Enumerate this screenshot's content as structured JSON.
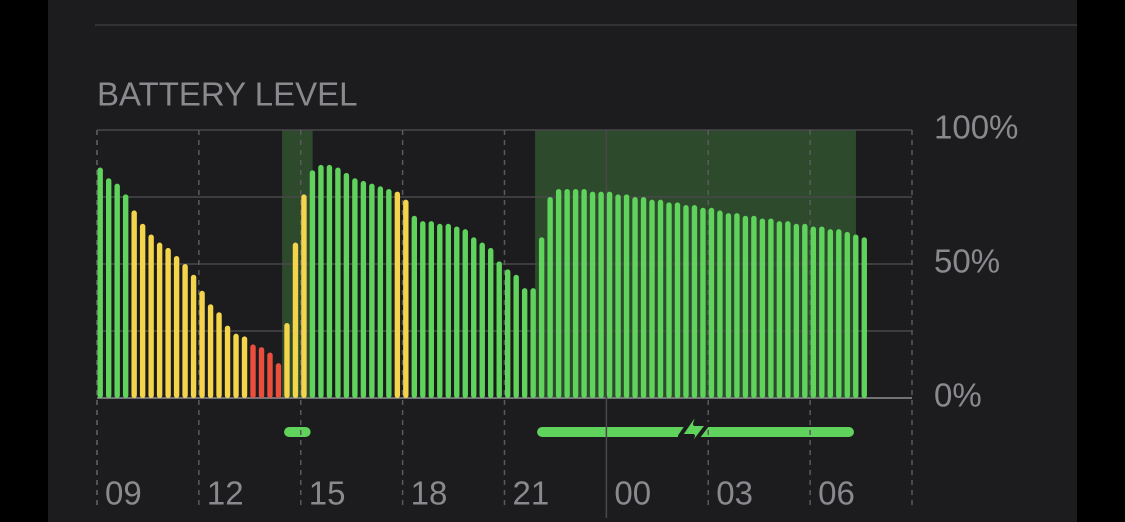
{
  "chart_data": {
    "type": "bar",
    "title": "BATTERY LEVEL",
    "xlim": [
      0,
      24
    ],
    "xticks": [
      {
        "value": 0,
        "label": "09"
      },
      {
        "value": 3,
        "label": "12"
      },
      {
        "value": 6,
        "label": "15"
      },
      {
        "value": 9,
        "label": "18"
      },
      {
        "value": 12,
        "label": "21"
      },
      {
        "value": 15,
        "label": "00"
      },
      {
        "value": 18,
        "label": "03"
      },
      {
        "value": 21,
        "label": "06"
      }
    ],
    "day_boundary": 15,
    "ylim": [
      0,
      100
    ],
    "yticks": [
      {
        "value": 0,
        "label": "0%"
      },
      {
        "value": 25,
        "label": null
      },
      {
        "value": 50,
        "label": "50%"
      },
      {
        "value": 75,
        "label": null
      },
      {
        "value": 100,
        "label": "100%"
      }
    ],
    "grid": true,
    "x": [
      0,
      0.25,
      0.5,
      0.75,
      1,
      1.25,
      1.5,
      1.75,
      2,
      2.25,
      2.5,
      2.75,
      3,
      3.25,
      3.5,
      3.75,
      4,
      4.25,
      4.5,
      4.75,
      5,
      5.25,
      5.5,
      5.75,
      6,
      6.25,
      6.5,
      6.75,
      7,
      7.25,
      7.5,
      7.75,
      8,
      8.25,
      8.5,
      8.75,
      9,
      9.25,
      9.5,
      9.75,
      10,
      10.25,
      10.5,
      10.75,
      11,
      11.25,
      11.5,
      11.75,
      12,
      12.25,
      12.5,
      12.75,
      13,
      13.25,
      13.5,
      13.75,
      14,
      14.25,
      14.5,
      14.75,
      15,
      15.25,
      15.5,
      15.75,
      16,
      16.25,
      16.5,
      16.75,
      17,
      17.25,
      17.5,
      17.75,
      18,
      18.25,
      18.5,
      18.75,
      19,
      19.25,
      19.5,
      19.75,
      20,
      20.25,
      20.5,
      20.75,
      21,
      21.25,
      21.5,
      21.75,
      22,
      22.25,
      22.5
    ],
    "values": [
      86,
      82,
      80,
      76,
      70,
      65,
      61,
      58,
      56,
      53,
      50,
      46,
      40,
      35,
      32,
      27,
      24,
      23,
      20,
      19,
      17,
      13,
      28,
      58,
      76,
      85,
      87,
      87,
      86,
      84,
      82,
      81,
      80,
      79,
      78,
      77,
      74,
      68,
      66,
      66,
      65,
      65,
      64,
      63,
      60,
      58,
      56,
      51,
      48,
      46,
      41,
      41,
      60,
      75,
      78,
      78,
      78,
      78,
      77,
      77,
      77,
      76,
      76,
      75,
      75,
      74,
      74,
      73,
      73,
      72,
      72,
      71,
      71,
      70,
      69,
      69,
      68,
      68,
      67,
      67,
      66,
      66,
      65,
      65,
      64,
      64,
      63,
      63,
      62,
      61,
      60
    ],
    "bar_colors": [
      "#5fd35c",
      "#5fd35c",
      "#5fd35c",
      "#5fd35c",
      "#f4d44b",
      "#f4d44b",
      "#f4d44b",
      "#f4d44b",
      "#f4d44b",
      "#f4d44b",
      "#f4d44b",
      "#f4d44b",
      "#f4d44b",
      "#f4d44b",
      "#f4d44b",
      "#f4d44b",
      "#f4d44b",
      "#f4d44b",
      "#ea4e3d",
      "#ea4e3d",
      "#ea4e3d",
      "#ea4e3d",
      "#f4d44b",
      "#f4d44b",
      "#f4d44b",
      "#5fd35c",
      "#5fd35c",
      "#5fd35c",
      "#5fd35c",
      "#5fd35c",
      "#5fd35c",
      "#5fd35c",
      "#5fd35c",
      "#5fd35c",
      "#5fd35c",
      "#f4d44b",
      "#f4d44b",
      "#5fd35c",
      "#5fd35c",
      "#5fd35c",
      "#5fd35c",
      "#5fd35c",
      "#5fd35c",
      "#5fd35c",
      "#5fd35c",
      "#5fd35c",
      "#5fd35c",
      "#5fd35c",
      "#5fd35c",
      "#5fd35c",
      "#5fd35c",
      "#5fd35c",
      "#5fd35c",
      "#5fd35c",
      "#5fd35c",
      "#5fd35c",
      "#5fd35c",
      "#5fd35c",
      "#5fd35c",
      "#5fd35c",
      "#5fd35c",
      "#5fd35c",
      "#5fd35c",
      "#5fd35c",
      "#5fd35c",
      "#5fd35c",
      "#5fd35c",
      "#5fd35c",
      "#5fd35c",
      "#5fd35c",
      "#5fd35c",
      "#5fd35c",
      "#5fd35c",
      "#5fd35c",
      "#5fd35c",
      "#5fd35c",
      "#5fd35c",
      "#5fd35c",
      "#5fd35c",
      "#5fd35c",
      "#5fd35c",
      "#5fd35c",
      "#5fd35c",
      "#5fd35c",
      "#5fd35c",
      "#5fd35c",
      "#5fd35c",
      "#5fd35c",
      "#5fd35c",
      "#5fd35c",
      "#5fd35c"
    ],
    "charging_periods": [
      {
        "start": 5.45,
        "end": 6.35
      },
      {
        "start": 12.9,
        "end": 22.35
      }
    ],
    "charging_color": "#5fd35c"
  }
}
